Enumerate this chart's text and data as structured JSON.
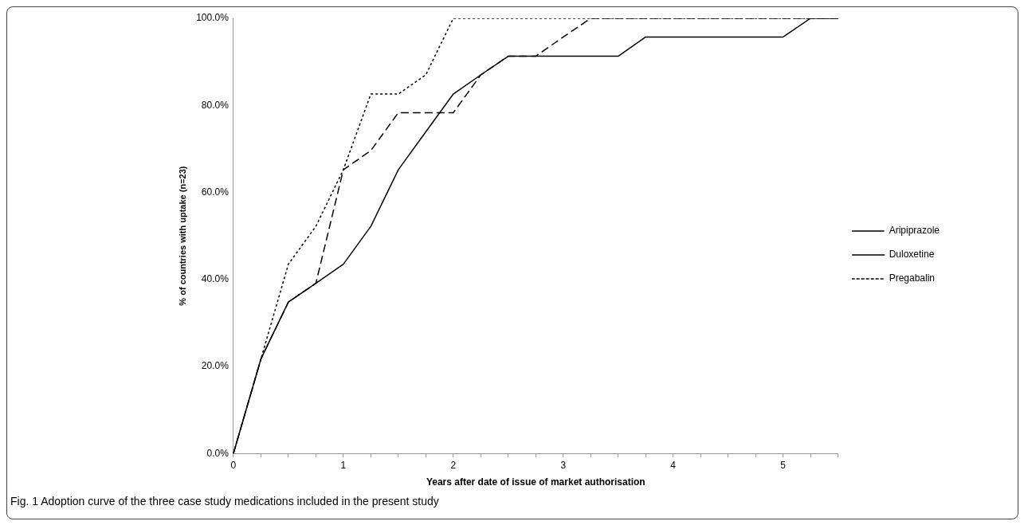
{
  "chart_data": {
    "type": "line",
    "xlabel": "Years after date of issue of market authorisation",
    "ylabel": "% of countries with uptake (n=23)",
    "annotations": [
      "Fig. 1 Adoption curve of the three case study medications included in the present study"
    ],
    "categories": [
      "0",
      null,
      null,
      null,
      "1",
      null,
      null,
      null,
      "2",
      null,
      null,
      null,
      "3",
      null,
      null,
      null,
      "4",
      null,
      null,
      null,
      "5",
      null,
      null
    ],
    "series": [
      {
        "name": "Aripiprazole",
        "color": "#000000",
        "line_style": "dashed",
        "values": [
          0,
          21.7,
          34.8,
          39.1,
          65.2,
          69.6,
          78.3,
          78.3,
          78.3,
          87.0,
          91.3,
          91.3,
          95.7,
          100,
          100,
          100,
          100,
          100,
          100,
          100,
          100,
          100,
          100
        ]
      },
      {
        "name": "Duloxetine",
        "color": "#000000",
        "line_style": "solid",
        "values": [
          0,
          21.7,
          34.8,
          39.1,
          43.5,
          52.2,
          65.2,
          73.9,
          82.6,
          87.0,
          91.3,
          91.3,
          91.3,
          91.3,
          91.3,
          95.7,
          95.7,
          95.7,
          95.7,
          95.7,
          95.7,
          100,
          100
        ]
      },
      {
        "name": "Pregabalin",
        "color": "#000000",
        "line_style": "dotted",
        "values": [
          0,
          21.7,
          43.5,
          52.2,
          65.2,
          82.6,
          82.6,
          87.0,
          100,
          100,
          100,
          100,
          100,
          100,
          100,
          100,
          100,
          100,
          100,
          100,
          100,
          100,
          100
        ]
      }
    ],
    "ylim": [
      0,
      100
    ],
    "yticks": [
      {
        "value": 0,
        "label": "0.0%"
      },
      {
        "value": 20,
        "label": "20.0%"
      },
      {
        "value": 40,
        "label": "40.0%"
      },
      {
        "value": 60,
        "label": "60.0%"
      },
      {
        "value": 80,
        "label": "80.0%"
      },
      {
        "value": 100,
        "label": "100.0%"
      }
    ],
    "grid": false,
    "legend": "right",
    "marker": "none"
  }
}
